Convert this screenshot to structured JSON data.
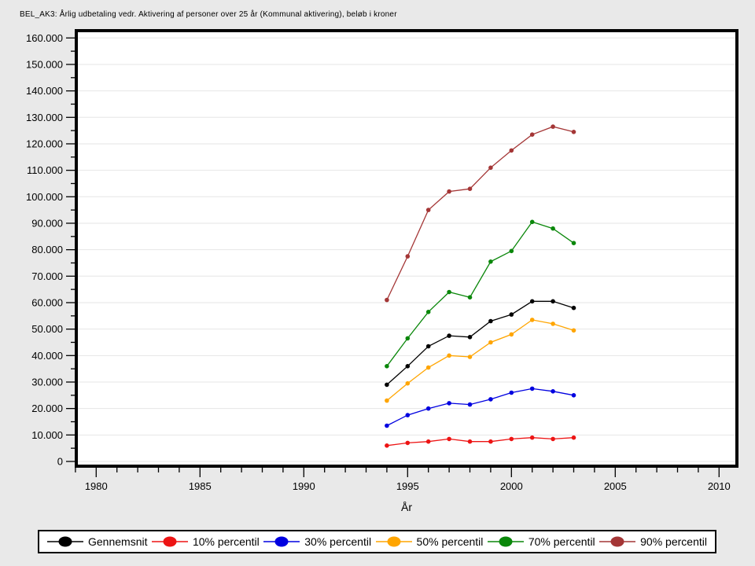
{
  "title": "BEL_AK3: Årlig udbetaling vedr. Aktivering af personer over 25 år (Kommunal aktivering), beløb i kroner",
  "chart_data": {
    "type": "line",
    "title": "BEL_AK3: Årlig udbetaling vedr. Aktivering af personer over 25 år (Kommunal aktivering), beløb i kroner",
    "xlabel": "År",
    "ylabel": "",
    "x": [
      1994,
      1995,
      1996,
      1997,
      1998,
      1999,
      2000,
      2001,
      2002,
      2003
    ],
    "series": [
      {
        "name": "Gennemsnit",
        "color": "#000000",
        "values": [
          29000,
          36000,
          43500,
          47500,
          47000,
          53000,
          55500,
          60500,
          60500,
          58000
        ]
      },
      {
        "name": "10% percentil",
        "color": "#ed1414",
        "values": [
          6000,
          7000,
          7500,
          8500,
          7500,
          7500,
          8500,
          9000,
          8500,
          9000
        ]
      },
      {
        "name": "30% percentil",
        "color": "#0000e0",
        "values": [
          13500,
          17500,
          20000,
          22000,
          21500,
          23500,
          26000,
          27500,
          26500,
          25000
        ]
      },
      {
        "name": "50% percentil",
        "color": "#ffa500",
        "values": [
          23000,
          29500,
          35500,
          40000,
          39500,
          45000,
          48000,
          53500,
          52000,
          49500
        ]
      },
      {
        "name": "70% percentil",
        "color": "#0a870a",
        "values": [
          36000,
          46500,
          56500,
          64000,
          62000,
          75500,
          79500,
          90500,
          88000,
          82500
        ]
      },
      {
        "name": "90% percentil",
        "color": "#a43636",
        "values": [
          61000,
          77500,
          95000,
          102000,
          103000,
          111000,
          117500,
          123500,
          126500,
          124500
        ]
      }
    ],
    "xlim": [
      1979,
      2011
    ],
    "ylim": [
      0,
      160000
    ],
    "x_ticks": {
      "values": [
        1980,
        1985,
        1990,
        1995,
        2000,
        2005,
        2010
      ],
      "labels": [
        "1980",
        "1985",
        "1990",
        "1995",
        "2000",
        "2005",
        "2010"
      ],
      "minor_step": 1
    },
    "y_ticks": {
      "values": [
        0,
        10000,
        20000,
        30000,
        40000,
        50000,
        60000,
        70000,
        80000,
        90000,
        100000,
        110000,
        120000,
        130000,
        140000,
        150000,
        160000
      ],
      "labels": [
        "0",
        "10.000",
        "20.000",
        "30.000",
        "40.000",
        "50.000",
        "60.000",
        "70.000",
        "80.000",
        "90.000",
        "100.000",
        "110.000",
        "120.000",
        "130.000",
        "140.000",
        "150.000",
        "160.000"
      ],
      "minor_step": 5000
    },
    "grid": "horizontal-major",
    "legend_position": "bottom",
    "colors": {
      "background": "#e9e9e9",
      "plot_background": "#ffffff",
      "gridline": "#e6e6e6",
      "axis": "#000000"
    }
  }
}
